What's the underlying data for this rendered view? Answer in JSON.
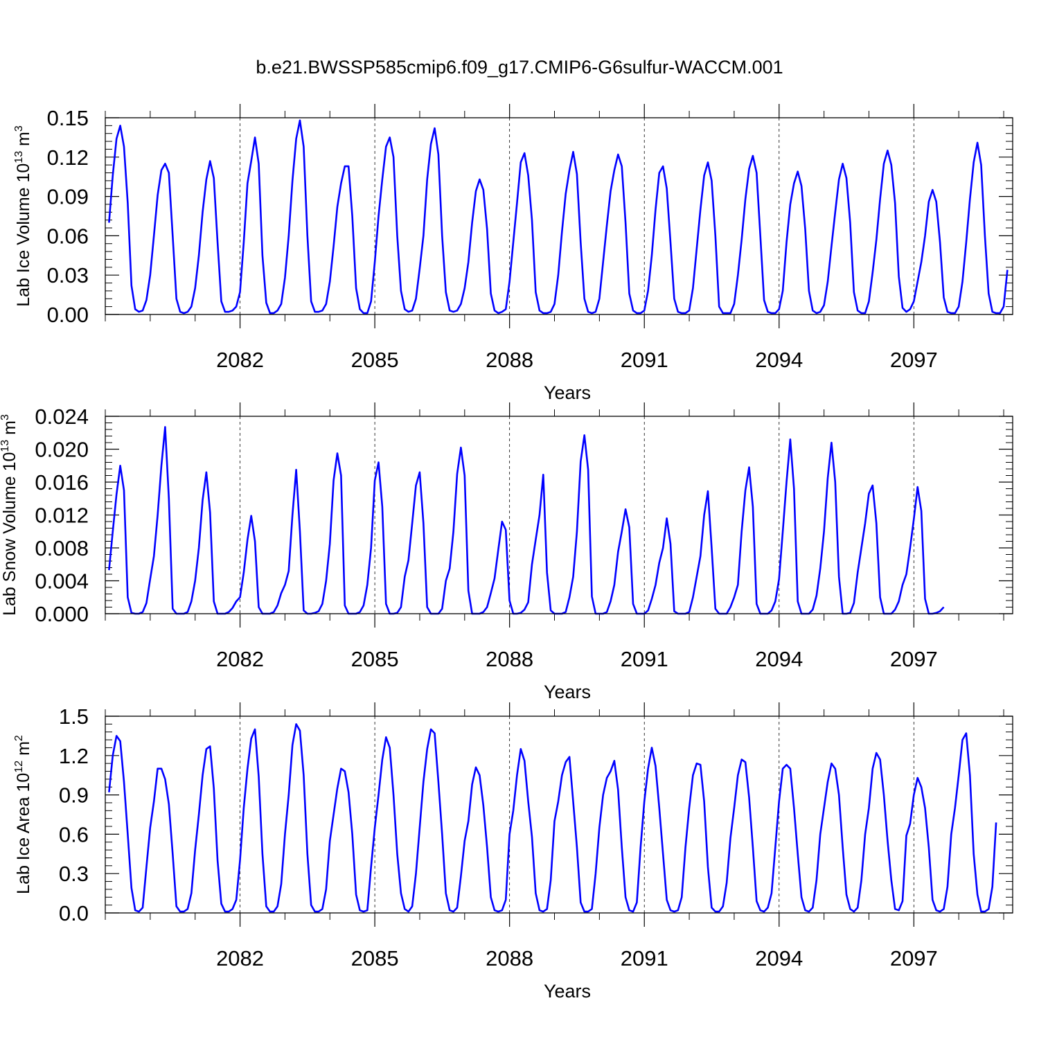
{
  "title": "b.e21.BWSSP585cmip6.f09_g17.CMIP6-G6sulfur-WACCM.001",
  "line_color": "#0000ff",
  "chart_data": [
    {
      "type": "line",
      "ylabel": "Lab Ice Volume 10",
      "ylabel_sup": "13",
      "ylabel_unit": " m",
      "ylabel_unit_sup": "3",
      "xlabel": "Years",
      "xlim": [
        2079.0,
        2099.2
      ],
      "ylim": [
        0,
        0.15
      ],
      "yticks": [
        0.0,
        0.03,
        0.06,
        0.09,
        0.12,
        0.15
      ],
      "ytick_labels": [
        "0.00",
        "0.03",
        "0.06",
        "0.09",
        "0.12",
        "0.15"
      ],
      "xticks": [
        2082,
        2085,
        2088,
        2091,
        2094,
        2097
      ],
      "xtick_labels": [
        "2082",
        "2085",
        "2088",
        "2091",
        "2094",
        "2097"
      ],
      "x_start": 2079.083,
      "x_step": 0.08333,
      "values": [
        0.07,
        0.106,
        0.134,
        0.144,
        0.128,
        0.085,
        0.022,
        0.004,
        0.002,
        0.003,
        0.011,
        0.03,
        0.06,
        0.091,
        0.11,
        0.115,
        0.108,
        0.06,
        0.012,
        0.002,
        0.001,
        0.002,
        0.006,
        0.02,
        0.045,
        0.078,
        0.103,
        0.117,
        0.104,
        0.055,
        0.01,
        0.002,
        0.002,
        0.003,
        0.006,
        0.017,
        0.055,
        0.1,
        0.117,
        0.135,
        0.115,
        0.045,
        0.009,
        0.001,
        0.001,
        0.003,
        0.008,
        0.028,
        0.06,
        0.102,
        0.134,
        0.148,
        0.128,
        0.06,
        0.01,
        0.002,
        0.002,
        0.003,
        0.008,
        0.025,
        0.052,
        0.082,
        0.1,
        0.113,
        0.113,
        0.075,
        0.02,
        0.004,
        0.001,
        0.001,
        0.01,
        0.04,
        0.075,
        0.103,
        0.128,
        0.135,
        0.12,
        0.06,
        0.018,
        0.004,
        0.002,
        0.003,
        0.012,
        0.035,
        0.06,
        0.103,
        0.13,
        0.142,
        0.122,
        0.06,
        0.017,
        0.003,
        0.002,
        0.003,
        0.008,
        0.02,
        0.04,
        0.07,
        0.094,
        0.103,
        0.095,
        0.065,
        0.016,
        0.003,
        0.001,
        0.002,
        0.004,
        0.025,
        0.055,
        0.085,
        0.116,
        0.123,
        0.106,
        0.072,
        0.017,
        0.003,
        0.001,
        0.001,
        0.002,
        0.008,
        0.03,
        0.063,
        0.092,
        0.11,
        0.124,
        0.107,
        0.055,
        0.012,
        0.002,
        0.001,
        0.002,
        0.012,
        0.04,
        0.068,
        0.094,
        0.11,
        0.122,
        0.113,
        0.07,
        0.016,
        0.003,
        0.001,
        0.001,
        0.003,
        0.018,
        0.045,
        0.08,
        0.108,
        0.113,
        0.096,
        0.055,
        0.012,
        0.002,
        0.001,
        0.001,
        0.003,
        0.02,
        0.05,
        0.08,
        0.106,
        0.116,
        0.102,
        0.06,
        0.006,
        0.001,
        0.001,
        0.001,
        0.008,
        0.03,
        0.057,
        0.088,
        0.111,
        0.121,
        0.108,
        0.06,
        0.011,
        0.002,
        0.001,
        0.001,
        0.004,
        0.018,
        0.055,
        0.084,
        0.1,
        0.109,
        0.098,
        0.065,
        0.018,
        0.003,
        0.001,
        0.002,
        0.007,
        0.025,
        0.052,
        0.078,
        0.103,
        0.115,
        0.104,
        0.07,
        0.017,
        0.003,
        0.001,
        0.001,
        0.01,
        0.032,
        0.057,
        0.088,
        0.115,
        0.125,
        0.114,
        0.085,
        0.029,
        0.005,
        0.002,
        0.004,
        0.01,
        0.025,
        0.04,
        0.06,
        0.086,
        0.095,
        0.086,
        0.055,
        0.013,
        0.002,
        0.001,
        0.001,
        0.006,
        0.025,
        0.055,
        0.088,
        0.116,
        0.131,
        0.114,
        0.06,
        0.016,
        0.002,
        0.001,
        0.001,
        0.006,
        0.034
      ]
    },
    {
      "type": "line",
      "ylabel": "Lab Snow Volume 10",
      "ylabel_sup": "13",
      "ylabel_unit": " m",
      "ylabel_unit_sup": "3",
      "xlabel": "Years",
      "xlim": [
        2079.0,
        2099.2
      ],
      "ylim": [
        0,
        0.024
      ],
      "yticks": [
        0.0,
        0.004,
        0.008,
        0.012,
        0.016,
        0.02,
        0.024
      ],
      "ytick_labels": [
        "0.000",
        "0.004",
        "0.008",
        "0.012",
        "0.016",
        "0.020",
        "0.024"
      ],
      "xticks": [
        2082,
        2085,
        2088,
        2091,
        2094,
        2097
      ],
      "xtick_labels": [
        "2082",
        "2085",
        "2088",
        "2091",
        "2094",
        "2097"
      ],
      "x_start": 2079.083,
      "x_step": 0.08333,
      "values": [
        0.0053,
        0.01,
        0.0145,
        0.018,
        0.015,
        0.002,
        0.0001,
        0.0,
        0.0,
        0.0002,
        0.0013,
        0.0042,
        0.007,
        0.012,
        0.018,
        0.0227,
        0.014,
        0.0006,
        0.0,
        0.0,
        0.0,
        0.0002,
        0.0015,
        0.004,
        0.008,
        0.0138,
        0.0172,
        0.0123,
        0.0015,
        0.0,
        0.0,
        0.0,
        0.0002,
        0.0007,
        0.0015,
        0.002,
        0.005,
        0.009,
        0.0119,
        0.0088,
        0.0008,
        0.0,
        0.0,
        0.0,
        0.0002,
        0.001,
        0.0025,
        0.0035,
        0.0052,
        0.012,
        0.0175,
        0.01,
        0.0004,
        0.0,
        0.0,
        0.0001,
        0.0003,
        0.0012,
        0.004,
        0.0085,
        0.0162,
        0.0195,
        0.0168,
        0.001,
        0.0,
        0.0,
        0.0,
        0.0002,
        0.001,
        0.0035,
        0.008,
        0.0162,
        0.0184,
        0.013,
        0.0012,
        0.0,
        0.0,
        0.0001,
        0.0008,
        0.0045,
        0.0065,
        0.011,
        0.0156,
        0.0172,
        0.011,
        0.0008,
        0.0,
        0.0,
        0.0,
        0.0006,
        0.004,
        0.0055,
        0.01,
        0.017,
        0.0202,
        0.0168,
        0.0028,
        0.0,
        0.0,
        0.0,
        0.0002,
        0.0008,
        0.0025,
        0.0043,
        0.0078,
        0.0112,
        0.0102,
        0.0016,
        0.0,
        0.0,
        0.0001,
        0.0005,
        0.0014,
        0.006,
        0.009,
        0.012,
        0.0169,
        0.005,
        0.0004,
        0.0,
        0.0,
        0.0,
        0.0002,
        0.002,
        0.0045,
        0.01,
        0.0185,
        0.0217,
        0.0175,
        0.0021,
        0.0,
        0.0,
        0.0,
        0.0002,
        0.0015,
        0.0035,
        0.0075,
        0.01,
        0.0127,
        0.0105,
        0.0012,
        0.0,
        0.0,
        0.0,
        0.0004,
        0.0018,
        0.0035,
        0.0062,
        0.008,
        0.0116,
        0.0085,
        0.0003,
        0.0,
        0.0,
        0.0,
        0.0002,
        0.002,
        0.0045,
        0.007,
        0.012,
        0.0149,
        0.008,
        0.0006,
        0.0,
        0.0,
        0.0,
        0.0008,
        0.002,
        0.0035,
        0.01,
        0.015,
        0.0178,
        0.013,
        0.0012,
        0.0,
        0.0,
        0.0,
        0.0004,
        0.0015,
        0.0042,
        0.01,
        0.016,
        0.0212,
        0.0152,
        0.0015,
        0.0,
        0.0,
        0.0,
        0.0005,
        0.0022,
        0.0055,
        0.01,
        0.0165,
        0.0208,
        0.016,
        0.0045,
        0.0,
        0.0,
        0.0001,
        0.0013,
        0.005,
        0.008,
        0.011,
        0.0146,
        0.0156,
        0.011,
        0.002,
        0.0,
        0.0,
        0.0,
        0.0005,
        0.0015,
        0.0035,
        0.0048,
        0.008,
        0.0115,
        0.0154,
        0.0125,
        0.0018,
        0.0,
        0.0,
        0.0001,
        0.0003,
        0.0008
      ]
    },
    {
      "type": "line",
      "ylabel": "Lab Ice Area 10",
      "ylabel_sup": "12",
      "ylabel_unit": " m",
      "ylabel_unit_sup": "2",
      "xlabel": "Years",
      "xlim": [
        2079.0,
        2099.2
      ],
      "ylim": [
        0,
        1.5
      ],
      "yticks": [
        0.0,
        0.3,
        0.6,
        0.9,
        1.2,
        1.5
      ],
      "ytick_labels": [
        "0.0",
        "0.3",
        "0.6",
        "0.9",
        "1.2",
        "1.5"
      ],
      "xticks": [
        2082,
        2085,
        2088,
        2091,
        2094,
        2097
      ],
      "xtick_labels": [
        "2082",
        "2085",
        "2088",
        "2091",
        "2094",
        "2097"
      ],
      "x_start": 2079.083,
      "x_step": 0.08333,
      "values": [
        0.92,
        1.2,
        1.35,
        1.31,
        1.0,
        0.6,
        0.19,
        0.02,
        0.01,
        0.04,
        0.35,
        0.65,
        0.85,
        1.1,
        1.1,
        1.02,
        0.83,
        0.45,
        0.05,
        0.01,
        0.01,
        0.03,
        0.15,
        0.48,
        0.75,
        1.05,
        1.25,
        1.27,
        0.95,
        0.4,
        0.07,
        0.01,
        0.01,
        0.03,
        0.1,
        0.4,
        0.8,
        1.1,
        1.33,
        1.4,
        1.04,
        0.45,
        0.05,
        0.01,
        0.01,
        0.05,
        0.22,
        0.6,
        0.9,
        1.28,
        1.44,
        1.39,
        1.05,
        0.45,
        0.06,
        0.01,
        0.01,
        0.03,
        0.18,
        0.55,
        0.75,
        0.95,
        1.1,
        1.08,
        0.92,
        0.6,
        0.14,
        0.02,
        0.01,
        0.02,
        0.35,
        0.65,
        0.9,
        1.17,
        1.34,
        1.26,
        0.9,
        0.45,
        0.15,
        0.03,
        0.01,
        0.05,
        0.3,
        0.65,
        1.0,
        1.25,
        1.4,
        1.37,
        1.0,
        0.6,
        0.15,
        0.02,
        0.01,
        0.04,
        0.28,
        0.55,
        0.7,
        0.98,
        1.11,
        1.05,
        0.82,
        0.5,
        0.12,
        0.02,
        0.01,
        0.02,
        0.1,
        0.6,
        0.78,
        1.05,
        1.25,
        1.16,
        0.85,
        0.58,
        0.15,
        0.02,
        0.01,
        0.03,
        0.25,
        0.7,
        0.85,
        1.05,
        1.15,
        1.19,
        0.85,
        0.5,
        0.08,
        0.01,
        0.01,
        0.03,
        0.3,
        0.65,
        0.9,
        1.03,
        1.08,
        1.16,
        0.94,
        0.5,
        0.12,
        0.02,
        0.01,
        0.08,
        0.5,
        0.85,
        1.1,
        1.26,
        1.12,
        0.8,
        0.45,
        0.1,
        0.02,
        0.01,
        0.02,
        0.12,
        0.5,
        0.8,
        1.05,
        1.14,
        1.13,
        0.85,
        0.35,
        0.04,
        0.01,
        0.01,
        0.05,
        0.23,
        0.57,
        0.8,
        1.05,
        1.17,
        1.15,
        0.88,
        0.5,
        0.09,
        0.02,
        0.01,
        0.04,
        0.15,
        0.5,
        0.85,
        1.1,
        1.13,
        1.1,
        0.8,
        0.45,
        0.12,
        0.02,
        0.01,
        0.04,
        0.25,
        0.6,
        0.8,
        1.0,
        1.14,
        1.1,
        0.9,
        0.5,
        0.14,
        0.03,
        0.01,
        0.04,
        0.25,
        0.6,
        0.8,
        1.1,
        1.22,
        1.17,
        0.9,
        0.55,
        0.25,
        0.03,
        0.02,
        0.09,
        0.59,
        0.68,
        0.9,
        1.03,
        0.96,
        0.8,
        0.5,
        0.1,
        0.02,
        0.01,
        0.03,
        0.2,
        0.6,
        0.8,
        1.05,
        1.32,
        1.37,
        1.05,
        0.45,
        0.14,
        0.01,
        0.01,
        0.03,
        0.2,
        0.69
      ]
    }
  ]
}
